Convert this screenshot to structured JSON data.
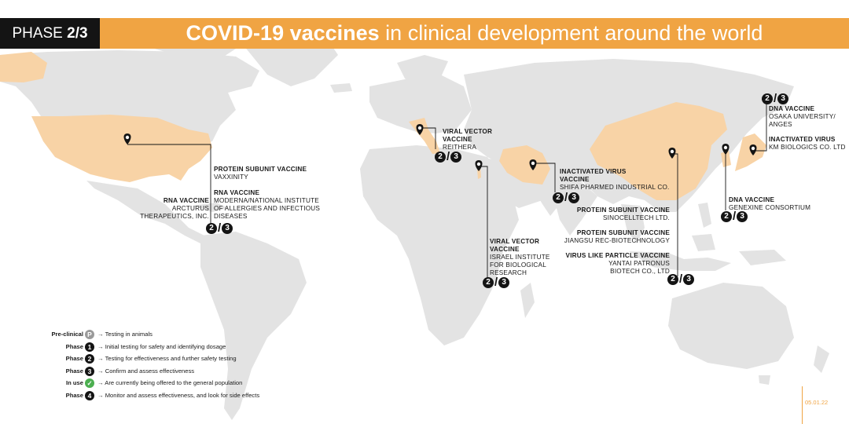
{
  "header": {
    "phase_label": "PHASE ",
    "phase_value": "2/3",
    "title_bold": "COVID-19 vaccines",
    "title_rest": " in clinical development around the world"
  },
  "colors": {
    "accent": "#f0a443",
    "highlight_land": "#f8d3a6",
    "land": "#e3e3e3",
    "ink": "#141414",
    "in_use": "#4caf50"
  },
  "highlighted_countries": [
    "United States",
    "Italy",
    "Israel",
    "Iran",
    "China",
    "South Korea",
    "Japan"
  ],
  "annotations": {
    "usa_protein": {
      "heading": "PROTEIN SUBUNIT VACCINE",
      "sub": "VAXXINITY"
    },
    "usa_rna_moderna": {
      "heading": "RNA VACCINE",
      "sub1": "MODERNA/NATIONAL INSTITUTE",
      "sub2": "OF ALLERGIES AND INFECTIOUS",
      "sub3": "DISEASES"
    },
    "usa_rna_arcturus": {
      "heading": "RNA VACCINE",
      "sub1": "ARCTURUS",
      "sub2": "THERAPEUTICS, INC."
    },
    "italy": {
      "heading1": "VIRAL VECTOR",
      "heading2": "VACCINE",
      "sub": "REITHERA"
    },
    "israel": {
      "heading1": "VIRAL VECTOR",
      "heading2": "VACCINE",
      "sub1": "ISRAEL INSTITUTE",
      "sub2": "FOR BIOLOGICAL",
      "sub3": "RESEARCH"
    },
    "iran": {
      "heading1": "INACTIVATED VIRUS",
      "heading2": "VACCINE",
      "sub": "SHIFA PHARMED INDUSTRIAL CO."
    },
    "china_1": {
      "heading": "PROTEIN SUBUNIT VACCINE",
      "sub": "SINOCELLTECH LTD."
    },
    "china_2": {
      "heading": "PROTEIN SUBUNIT VACCINE",
      "sub": "JIANGSU REC-BIOTECHNOLOGY"
    },
    "china_3": {
      "heading": "VIRUS LIKE PARTICLE VACCINE",
      "sub1": "YANTAI PATRONUS",
      "sub2": "BIOTECH CO., LTD"
    },
    "korea": {
      "heading": "DNA VACCINE",
      "sub": "GENEXINE CONSORTIUM"
    },
    "japan_1": {
      "heading": "DNA VACCINE",
      "sub1": "OSAKA UNIVERSITY/",
      "sub2": "ANGES"
    },
    "japan_2": {
      "heading": "INACTIVATED VIRUS",
      "sub": "KM BIOLOGICS CO. LTD"
    }
  },
  "badge": {
    "left": "2",
    "slash": "/",
    "right": "3"
  },
  "legend": [
    {
      "key": "Pre-clinical",
      "mark": "P",
      "desc": "→ Testing in animals"
    },
    {
      "key": "Phase",
      "mark": "1",
      "desc": "→ Initial testing for safety and identifying dosage"
    },
    {
      "key": "Phase",
      "mark": "2",
      "desc": "→ Testing for effectiveness and further safety testing"
    },
    {
      "key": "Phase",
      "mark": "3",
      "desc": "→ Confirm and assess effectiveness"
    },
    {
      "key": "In use",
      "mark": "✓",
      "desc": "→ Are currently being offered to the general population"
    },
    {
      "key": "Phase",
      "mark": "4",
      "desc": "→ Monitor and assess effectiveness, and look for side effects"
    }
  ],
  "date": "05.01.22"
}
